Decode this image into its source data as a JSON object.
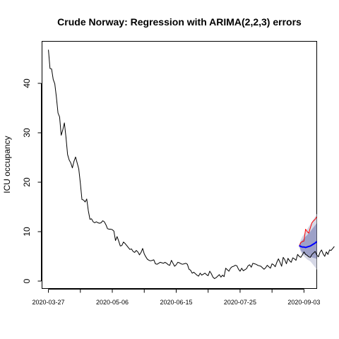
{
  "chart_data": {
    "type": "line",
    "title": "Crude Norway: Regression with ARIMA(2,2,3) errors",
    "xlabel": "",
    "ylabel": "ICU occupancy",
    "x_start": "2020-03-27",
    "x_end": "2020-09-07",
    "xlim": [
      "2020-03-23",
      "2020-09-11"
    ],
    "ylim": [
      -1.5,
      48.5
    ],
    "x_ticks": [
      "2020-03-27",
      "2020-04-16",
      "2020-05-06",
      "2020-05-26",
      "2020-06-15",
      "2020-07-05",
      "2020-07-25",
      "2020-08-14",
      "2020-09-03"
    ],
    "x_tick_labels": [
      "2020-03-27",
      "2020-05-06",
      "2020-06-15",
      "2020-07-25",
      "2020-09-03"
    ],
    "y_ticks": [
      0,
      10,
      20,
      30,
      40
    ],
    "grid": false,
    "colors": {
      "observed": "#000000",
      "actual_future": "#ff0000",
      "forecast_mean": "#0000ff",
      "band_80": "#9da1c8",
      "band_95": "#d6d8e6"
    },
    "series": [
      {
        "start": "2020-03-27",
        "values": [
          46.8,
          43.0,
          42.9,
          40.8,
          39.9,
          37.2,
          34.0,
          33.2,
          29.5,
          30.6,
          32.0,
          29.1,
          25.6,
          24.5,
          23.9,
          22.9,
          24.2,
          25.1,
          23.9,
          22.7,
          19.8,
          16.5,
          16.4,
          16.0,
          16.6,
          14.2,
          12.5,
          12.6,
          12.0,
          11.8,
          12.0,
          11.8,
          11.7,
          11.8,
          12.2,
          12.0,
          11.4,
          10.6,
          10.5,
          10.5,
          10.4,
          10.1,
          8.2,
          9.0,
          8.1,
          7.1,
          7.2,
          7.9,
          7.6,
          7.2,
          6.8,
          6.4,
          6.5,
          6.0,
          5.8,
          6.2,
          5.9,
          5.3,
          5.8,
          6.6,
          5.5,
          4.9,
          4.4,
          4.2,
          4.1,
          4.2,
          4.3,
          3.5,
          3.4,
          3.6,
          3.8,
          3.7,
          3.6,
          3.8,
          3.6,
          3.3,
          3.2,
          4.2,
          3.6,
          3.0,
          3.3,
          3.8,
          3.7,
          3.5,
          3.4,
          3.5,
          3.6,
          3.4,
          2.4,
          2.2,
          1.6,
          1.8,
          1.5,
          1.2,
          1.0,
          1.6,
          1.2,
          1.4,
          1.6,
          1.3,
          1.1,
          2.0,
          1.5,
          0.8,
          0.5,
          0.7,
          1.0,
          1.3,
          0.8,
          1.2,
          0.9,
          2.6,
          2.3,
          2.0,
          2.6,
          2.9,
          3.0,
          3.2,
          3.1,
          2.4,
          2.0,
          2.6,
          2.1,
          2.3,
          2.5,
          3.1,
          3.3,
          2.8,
          3.6,
          3.5,
          3.4,
          3.2,
          3.1,
          3.0,
          2.7,
          2.4,
          2.7,
          3.2,
          2.9,
          2.6,
          3.5,
          3.3,
          2.9,
          3.8,
          4.5,
          3.8,
          3.0,
          4.8,
          4.3,
          3.5,
          4.6,
          4.1,
          3.8,
          4.7,
          4.5,
          4.2,
          5.4,
          5.0,
          4.8,
          5.3,
          5.9,
          5.4,
          5.2,
          4.9,
          4.8,
          5.4,
          5.7,
          6.0,
          5.3,
          4.9,
          5.8,
          6.3,
          5.5,
          5.0,
          5.9,
          5.4,
          6.3,
          6.2,
          6.6,
          7.0
        ]
      },
      {
        "start": "2020-08-31",
        "values": [
          7.0,
          7.8,
          8.0,
          8.1,
          10.5,
          10.0,
          9.7,
          10.8,
          11.8,
          12.2,
          12.5,
          13.0
        ]
      },
      {
        "start": "2020-08-31",
        "values": [
          7.2,
          7.0,
          6.9,
          6.9,
          6.8,
          6.9,
          7.0,
          7.1,
          7.3,
          7.5,
          7.7,
          8.0
        ]
      }
    ],
    "bands": {
      "start": "2020-08-31",
      "lower95": [
        7.0,
        5.9,
        5.3,
        5.0,
        4.7,
        4.4,
        4.2,
        4.0,
        3.6,
        3.2,
        2.8,
        2.3
      ],
      "upper95": [
        7.4,
        8.4,
        9.0,
        9.5,
        10.0,
        10.5,
        11.0,
        11.5,
        12.0,
        12.5,
        13.0,
        13.6
      ],
      "lower80": [
        7.1,
        6.2,
        5.8,
        5.5,
        5.3,
        5.1,
        5.0,
        4.9,
        4.8,
        4.7,
        4.6,
        4.5
      ],
      "upper80": [
        7.3,
        7.9,
        8.3,
        8.6,
        9.0,
        9.3,
        9.7,
        10.0,
        10.5,
        10.9,
        11.3,
        11.7
      ]
    }
  }
}
